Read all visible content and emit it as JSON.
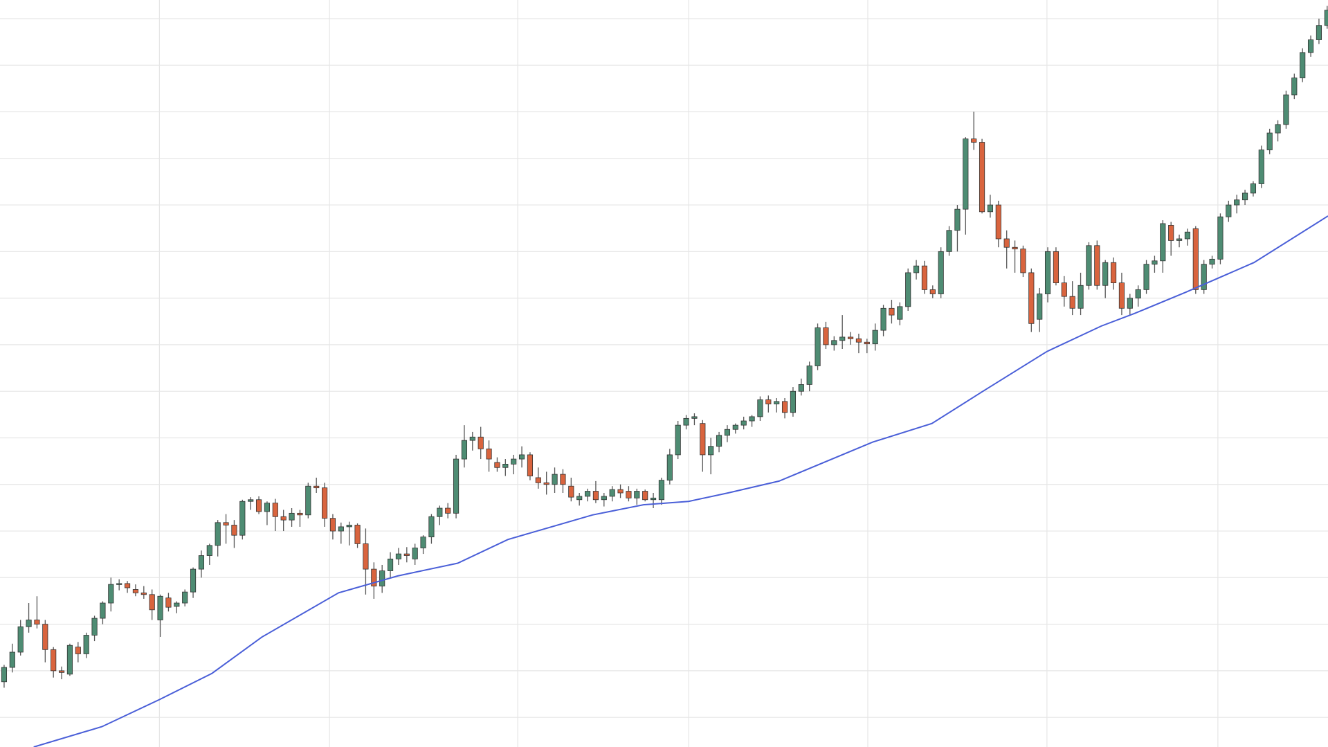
{
  "chart_data": {
    "type": "candlestick",
    "xlim": [
      -0.5,
      161.1
    ],
    "ylim": [
      0,
      882
    ],
    "xticks": [
      18.9,
      39.6,
      62.5,
      83.3,
      105.1,
      126.9,
      147.7
    ],
    "yticks": [
      860,
      805,
      750,
      695,
      640,
      585,
      530,
      475,
      420,
      365,
      310,
      255,
      200,
      145,
      90,
      35
    ],
    "grid": true,
    "grid_color": "#e6e6e6",
    "up_color": "#4e8c73",
    "down_color": "#d9643e",
    "wick_color": "#555555",
    "ohlc": [
      [
        77,
        97,
        70,
        94
      ],
      [
        94,
        122,
        88,
        112
      ],
      [
        112,
        150,
        108,
        142
      ],
      [
        142,
        170,
        135,
        150
      ],
      [
        150,
        178,
        140,
        145
      ],
      [
        145,
        150,
        100,
        115
      ],
      [
        115,
        118,
        82,
        90
      ],
      [
        90,
        95,
        80,
        88
      ],
      [
        86,
        122,
        84,
        120
      ],
      [
        118,
        124,
        100,
        110
      ],
      [
        110,
        135,
        105,
        132
      ],
      [
        132,
        155,
        125,
        152
      ],
      [
        152,
        172,
        145,
        170
      ],
      [
        170,
        200,
        160,
        192
      ],
      [
        192,
        198,
        185,
        193
      ],
      [
        193,
        196,
        182,
        188
      ],
      [
        186,
        192,
        178,
        182
      ],
      [
        182,
        190,
        175,
        180
      ],
      [
        180,
        186,
        150,
        162
      ],
      [
        150,
        180,
        130,
        178
      ],
      [
        176,
        182,
        160,
        165
      ],
      [
        166,
        172,
        158,
        170
      ],
      [
        170,
        186,
        166,
        183
      ],
      [
        183,
        212,
        176,
        210
      ],
      [
        210,
        232,
        200,
        226
      ],
      [
        226,
        240,
        215,
        238
      ],
      [
        238,
        268,
        225,
        265
      ],
      [
        265,
        275,
        240,
        262
      ],
      [
        262,
        268,
        235,
        250
      ],
      [
        250,
        292,
        245,
        290
      ],
      [
        290,
        295,
        280,
        292
      ],
      [
        292,
        296,
        275,
        278
      ],
      [
        278,
        290,
        262,
        288
      ],
      [
        288,
        293,
        255,
        272
      ],
      [
        272,
        280,
        255,
        268
      ],
      [
        268,
        282,
        260,
        276
      ],
      [
        276,
        280,
        260,
        274
      ],
      [
        274,
        312,
        270,
        308
      ],
      [
        308,
        318,
        300,
        306
      ],
      [
        306,
        312,
        260,
        270
      ],
      [
        270,
        275,
        245,
        255
      ],
      [
        255,
        265,
        240,
        260
      ],
      [
        260,
        266,
        238,
        262
      ],
      [
        262,
        264,
        235,
        240
      ],
      [
        240,
        258,
        180,
        210
      ],
      [
        210,
        218,
        175,
        190
      ],
      [
        190,
        215,
        182,
        208
      ],
      [
        208,
        230,
        200,
        222
      ],
      [
        222,
        235,
        215,
        228
      ],
      [
        228,
        236,
        218,
        226
      ],
      [
        222,
        240,
        215,
        235
      ],
      [
        235,
        250,
        228,
        248
      ],
      [
        248,
        275,
        240,
        272
      ],
      [
        272,
        285,
        262,
        282
      ],
      [
        282,
        288,
        270,
        276
      ],
      [
        276,
        345,
        270,
        340
      ],
      [
        340,
        380,
        330,
        362
      ],
      [
        362,
        372,
        350,
        366
      ],
      [
        366,
        378,
        340,
        352
      ],
      [
        352,
        362,
        325,
        340
      ],
      [
        336,
        342,
        325,
        330
      ],
      [
        330,
        340,
        320,
        334
      ],
      [
        334,
        345,
        322,
        340
      ],
      [
        340,
        355,
        330,
        345
      ],
      [
        345,
        348,
        315,
        320
      ],
      [
        318,
        330,
        305,
        312
      ],
      [
        312,
        325,
        298,
        310
      ],
      [
        310,
        330,
        300,
        322
      ],
      [
        322,
        328,
        300,
        310
      ],
      [
        308,
        318,
        290,
        295
      ],
      [
        292,
        300,
        285,
        296
      ],
      [
        296,
        305,
        290,
        302
      ],
      [
        302,
        314,
        288,
        292
      ],
      [
        292,
        300,
        284,
        296
      ],
      [
        296,
        308,
        290,
        304
      ],
      [
        304,
        310,
        294,
        300
      ],
      [
        302,
        308,
        290,
        294
      ],
      [
        294,
        305,
        286,
        302
      ],
      [
        302,
        304,
        290,
        292
      ],
      [
        292,
        300,
        282,
        294
      ],
      [
        292,
        318,
        286,
        315
      ],
      [
        315,
        352,
        310,
        345
      ],
      [
        345,
        385,
        340,
        380
      ],
      [
        380,
        392,
        375,
        388
      ],
      [
        388,
        394,
        380,
        390
      ],
      [
        382,
        386,
        325,
        345
      ],
      [
        345,
        365,
        322,
        355
      ],
      [
        355,
        372,
        348,
        368
      ],
      [
        368,
        380,
        360,
        375
      ],
      [
        375,
        382,
        370,
        380
      ],
      [
        380,
        390,
        375,
        385
      ],
      [
        385,
        392,
        378,
        390
      ],
      [
        390,
        414,
        385,
        410
      ],
      [
        410,
        415,
        395,
        405
      ],
      [
        405,
        412,
        395,
        408
      ],
      [
        408,
        412,
        388,
        395
      ],
      [
        395,
        425,
        390,
        420
      ],
      [
        420,
        435,
        415,
        428
      ],
      [
        428,
        455,
        420,
        450
      ],
      [
        450,
        500,
        445,
        495
      ],
      [
        495,
        502,
        470,
        475
      ],
      [
        475,
        485,
        468,
        480
      ],
      [
        480,
        510,
        470,
        484
      ],
      [
        484,
        490,
        475,
        482
      ],
      [
        482,
        488,
        465,
        478
      ],
      [
        478,
        482,
        465,
        476
      ],
      [
        476,
        500,
        468,
        492
      ],
      [
        492,
        522,
        485,
        518
      ],
      [
        518,
        528,
        500,
        510
      ],
      [
        505,
        525,
        498,
        520
      ],
      [
        520,
        565,
        515,
        560
      ],
      [
        560,
        575,
        552,
        568
      ],
      [
        568,
        574,
        535,
        540
      ],
      [
        540,
        545,
        530,
        535
      ],
      [
        535,
        590,
        530,
        585
      ],
      [
        585,
        615,
        580,
        610
      ],
      [
        610,
        640,
        585,
        635
      ],
      [
        635,
        720,
        605,
        718
      ],
      [
        718,
        750,
        705,
        714
      ],
      [
        714,
        718,
        630,
        632
      ],
      [
        632,
        652,
        625,
        640
      ],
      [
        640,
        645,
        590,
        600
      ],
      [
        600,
        610,
        565,
        590
      ],
      [
        590,
        598,
        560,
        588
      ],
      [
        588,
        592,
        555,
        560
      ],
      [
        560,
        565,
        490,
        500
      ],
      [
        505,
        542,
        490,
        535
      ],
      [
        535,
        590,
        525,
        585
      ],
      [
        585,
        590,
        545,
        548
      ],
      [
        548,
        556,
        520,
        532
      ],
      [
        532,
        550,
        510,
        518
      ],
      [
        518,
        560,
        510,
        545
      ],
      [
        545,
        596,
        540,
        592
      ],
      [
        592,
        598,
        540,
        545
      ],
      [
        545,
        575,
        530,
        572
      ],
      [
        572,
        578,
        540,
        548
      ],
      [
        548,
        560,
        510,
        518
      ],
      [
        518,
        535,
        510,
        530
      ],
      [
        530,
        545,
        520,
        540
      ],
      [
        540,
        575,
        535,
        570
      ],
      [
        570,
        580,
        560,
        574
      ],
      [
        574,
        622,
        560,
        618
      ],
      [
        616,
        620,
        580,
        598
      ],
      [
        598,
        605,
        590,
        600
      ],
      [
        600,
        612,
        592,
        608
      ],
      [
        612,
        615,
        535,
        540
      ],
      [
        540,
        575,
        535,
        570
      ],
      [
        570,
        580,
        565,
        576
      ],
      [
        576,
        630,
        570,
        626
      ],
      [
        626,
        645,
        620,
        640
      ],
      [
        640,
        652,
        630,
        646
      ],
      [
        646,
        658,
        640,
        654
      ],
      [
        654,
        668,
        650,
        665
      ],
      [
        665,
        710,
        660,
        705
      ],
      [
        705,
        730,
        700,
        725
      ],
      [
        725,
        740,
        715,
        735
      ],
      [
        735,
        775,
        730,
        770
      ],
      [
        770,
        795,
        765,
        790
      ],
      [
        790,
        825,
        785,
        820
      ],
      [
        820,
        840,
        815,
        835
      ],
      [
        835,
        860,
        830,
        852
      ],
      [
        852,
        875,
        848,
        870
      ]
    ],
    "ma": {
      "color": "#4a5fd8",
      "x": [
        3.6,
        11.9,
        18.9,
        25.3,
        31.4,
        40.7,
        47.9,
        55.2,
        61.3,
        71.6,
        77.8,
        83.3,
        88.1,
        94.3,
        105.7,
        112.9,
        119.1,
        126.9,
        133.5,
        137.6,
        143.8,
        152.1,
        161.1
      ],
      "values": [
        0,
        24,
        56,
        87,
        130,
        182,
        202,
        217,
        245,
        274,
        286,
        290,
        300,
        314,
        360,
        382,
        420,
        467,
        497,
        512,
        537,
        572,
        627
      ]
    }
  }
}
